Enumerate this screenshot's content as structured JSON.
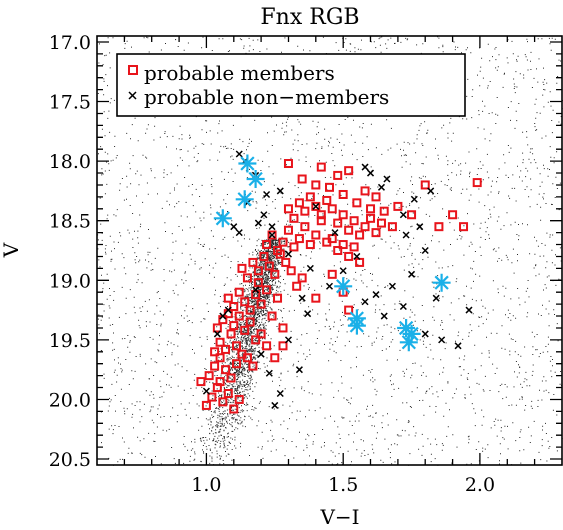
{
  "chart_data": {
    "type": "scatter",
    "title": "Fnx RGB",
    "xlabel": "V−I",
    "ylabel": "V",
    "xlim": [
      0.6,
      2.3
    ],
    "ylim": [
      20.55,
      16.95
    ],
    "y_inverted": true,
    "x_ticks": [
      1.0,
      1.5,
      2.0
    ],
    "x_tick_labels": [
      "1.0",
      "1.5",
      "2.0"
    ],
    "y_ticks": [
      17.0,
      17.5,
      18.0,
      18.5,
      19.0,
      19.5,
      20.0,
      20.5
    ],
    "y_tick_labels": [
      "17.0",
      "17.5",
      "18.0",
      "18.5",
      "19.0",
      "19.5",
      "20.0",
      "20.5"
    ],
    "grid": false,
    "legend_position": "top-left",
    "legend": [
      {
        "label": "probable members",
        "marker": "square",
        "color": "#e8141b"
      },
      {
        "label": "probable non−members",
        "marker": "x",
        "color": "#000000"
      }
    ],
    "series": [
      {
        "name": "probable members",
        "marker": "square",
        "color": "#e8141b",
        "points": [
          [
            1.0,
            20.05
          ],
          [
            1.02,
            19.98
          ],
          [
            1.04,
            19.9
          ],
          [
            1.06,
            20.02
          ],
          [
            1.08,
            19.95
          ],
          [
            1.1,
            20.08
          ],
          [
            1.01,
            19.8
          ],
          [
            1.03,
            19.72
          ],
          [
            1.05,
            19.85
          ],
          [
            1.07,
            19.75
          ],
          [
            1.09,
            19.82
          ],
          [
            1.11,
            19.7
          ],
          [
            1.03,
            19.6
          ],
          [
            1.05,
            19.52
          ],
          [
            1.07,
            19.58
          ],
          [
            1.09,
            19.45
          ],
          [
            1.11,
            19.55
          ],
          [
            1.13,
            19.62
          ],
          [
            1.04,
            19.4
          ],
          [
            1.06,
            19.33
          ],
          [
            1.08,
            19.28
          ],
          [
            1.1,
            19.38
          ],
          [
            1.12,
            19.3
          ],
          [
            1.14,
            19.42
          ],
          [
            1.16,
            19.35
          ],
          [
            1.18,
            19.5
          ],
          [
            1.2,
            19.45
          ],
          [
            1.22,
            19.55
          ],
          [
            1.15,
            19.65
          ],
          [
            1.17,
            19.72
          ],
          [
            1.08,
            19.15
          ],
          [
            1.1,
            19.22
          ],
          [
            1.12,
            19.1
          ],
          [
            1.14,
            19.18
          ],
          [
            1.16,
            19.25
          ],
          [
            1.18,
            19.12
          ],
          [
            1.2,
            19.2
          ],
          [
            1.22,
            19.08
          ],
          [
            1.24,
            19.3
          ],
          [
            1.26,
            19.15
          ],
          [
            1.28,
            19.4
          ],
          [
            1.19,
            19.02
          ],
          [
            1.13,
            18.9
          ],
          [
            1.15,
            18.98
          ],
          [
            1.17,
            18.85
          ],
          [
            1.19,
            18.92
          ],
          [
            1.21,
            18.8
          ],
          [
            1.23,
            18.88
          ],
          [
            1.25,
            18.95
          ],
          [
            1.27,
            18.78
          ],
          [
            1.29,
            18.85
          ],
          [
            1.31,
            18.92
          ],
          [
            1.33,
            19.05
          ],
          [
            1.35,
            18.98
          ],
          [
            1.22,
            18.7
          ],
          [
            1.24,
            18.62
          ],
          [
            1.26,
            18.75
          ],
          [
            1.28,
            18.68
          ],
          [
            1.3,
            18.58
          ],
          [
            1.32,
            18.72
          ],
          [
            1.34,
            18.65
          ],
          [
            1.36,
            18.55
          ],
          [
            1.38,
            18.7
          ],
          [
            1.4,
            18.62
          ],
          [
            1.42,
            18.5
          ],
          [
            1.44,
            18.68
          ],
          [
            1.3,
            18.4
          ],
          [
            1.32,
            18.48
          ],
          [
            1.34,
            18.35
          ],
          [
            1.36,
            18.42
          ],
          [
            1.38,
            18.3
          ],
          [
            1.4,
            18.38
          ],
          [
            1.42,
            18.45
          ],
          [
            1.44,
            18.33
          ],
          [
            1.46,
            18.4
          ],
          [
            1.48,
            18.52
          ],
          [
            1.5,
            18.45
          ],
          [
            1.52,
            18.58
          ],
          [
            1.54,
            18.5
          ],
          [
            1.56,
            18.62
          ],
          [
            1.58,
            18.55
          ],
          [
            1.6,
            18.48
          ],
          [
            1.62,
            18.6
          ],
          [
            1.64,
            18.52
          ],
          [
            1.46,
            18.65
          ],
          [
            1.48,
            18.75
          ],
          [
            1.5,
            18.7
          ],
          [
            1.52,
            18.8
          ],
          [
            1.54,
            18.72
          ],
          [
            1.56,
            18.85
          ],
          [
            1.45,
            18.22
          ],
          [
            1.5,
            18.28
          ],
          [
            1.55,
            18.35
          ],
          [
            1.6,
            18.4
          ],
          [
            1.65,
            18.42
          ],
          [
            1.7,
            18.38
          ],
          [
            1.35,
            18.15
          ],
          [
            1.4,
            18.2
          ],
          [
            1.48,
            18.12
          ],
          [
            1.58,
            18.25
          ],
          [
            1.62,
            18.3
          ],
          [
            1.68,
            18.55
          ],
          [
            1.3,
            18.02
          ],
          [
            1.42,
            18.05
          ],
          [
            1.52,
            18.08
          ],
          [
            1.75,
            18.45
          ],
          [
            1.8,
            18.2
          ],
          [
            1.85,
            18.55
          ],
          [
            1.9,
            18.45
          ],
          [
            1.94,
            18.55
          ],
          [
            1.99,
            18.18
          ],
          [
            1.28,
            19.55
          ],
          [
            1.4,
            19.15
          ],
          [
            1.5,
            19.1
          ],
          [
            1.52,
            19.25
          ],
          [
            1.46,
            18.95
          ],
          [
            1.25,
            19.65
          ],
          [
            1.12,
            20.0
          ],
          [
            1.05,
            19.65
          ],
          [
            0.98,
            19.85
          ]
        ]
      },
      {
        "name": "probable non−members",
        "marker": "x",
        "color": "#000000",
        "points": [
          [
            1.12,
            17.94
          ],
          [
            1.14,
            18.0
          ],
          [
            1.18,
            18.12
          ],
          [
            1.15,
            18.35
          ],
          [
            1.22,
            18.28
          ],
          [
            1.27,
            18.25
          ],
          [
            1.21,
            18.45
          ],
          [
            1.19,
            18.52
          ],
          [
            1.1,
            18.55
          ],
          [
            1.12,
            18.6
          ],
          [
            1.24,
            18.55
          ],
          [
            1.3,
            18.78
          ],
          [
            1.18,
            19.08
          ],
          [
            1.08,
            19.25
          ],
          [
            1.06,
            19.3
          ],
          [
            1.04,
            19.45
          ],
          [
            1.2,
            19.62
          ],
          [
            1.23,
            19.78
          ],
          [
            1.27,
            19.95
          ],
          [
            1.25,
            20.05
          ],
          [
            1.0,
            19.93
          ],
          [
            1.35,
            19.15
          ],
          [
            1.38,
            18.9
          ],
          [
            1.4,
            18.38
          ],
          [
            1.47,
            18.6
          ],
          [
            1.55,
            18.8
          ],
          [
            1.6,
            18.1
          ],
          [
            1.64,
            18.22
          ],
          [
            1.72,
            18.45
          ],
          [
            1.78,
            18.55
          ],
          [
            1.8,
            18.75
          ],
          [
            1.82,
            18.25
          ],
          [
            1.76,
            18.32
          ],
          [
            1.73,
            18.62
          ],
          [
            1.75,
            18.95
          ],
          [
            1.68,
            19.05
          ],
          [
            1.62,
            19.12
          ],
          [
            1.58,
            19.18
          ],
          [
            1.65,
            19.3
          ],
          [
            1.72,
            19.22
          ],
          [
            1.8,
            19.45
          ],
          [
            1.86,
            19.5
          ],
          [
            1.92,
            19.55
          ],
          [
            1.96,
            19.25
          ],
          [
            1.84,
            19.15
          ],
          [
            1.66,
            18.15
          ],
          [
            1.58,
            18.05
          ],
          [
            1.5,
            18.92
          ],
          [
            1.45,
            19.05
          ],
          [
            1.37,
            19.28
          ],
          [
            1.3,
            19.5
          ],
          [
            1.34,
            19.75
          ],
          [
            1.24,
            18.62
          ]
        ]
      },
      {
        "marker": "asterisk",
        "color": "#1ab0e8",
        "points": [
          [
            1.15,
            18.02
          ],
          [
            1.18,
            18.15
          ],
          [
            1.14,
            18.32
          ],
          [
            1.06,
            18.48
          ],
          [
            1.5,
            19.05
          ],
          [
            1.55,
            19.32
          ],
          [
            1.55,
            19.38
          ],
          [
            1.73,
            19.4
          ],
          [
            1.75,
            19.45
          ],
          [
            1.74,
            19.52
          ],
          [
            1.86,
            19.02
          ]
        ]
      }
    ]
  }
}
